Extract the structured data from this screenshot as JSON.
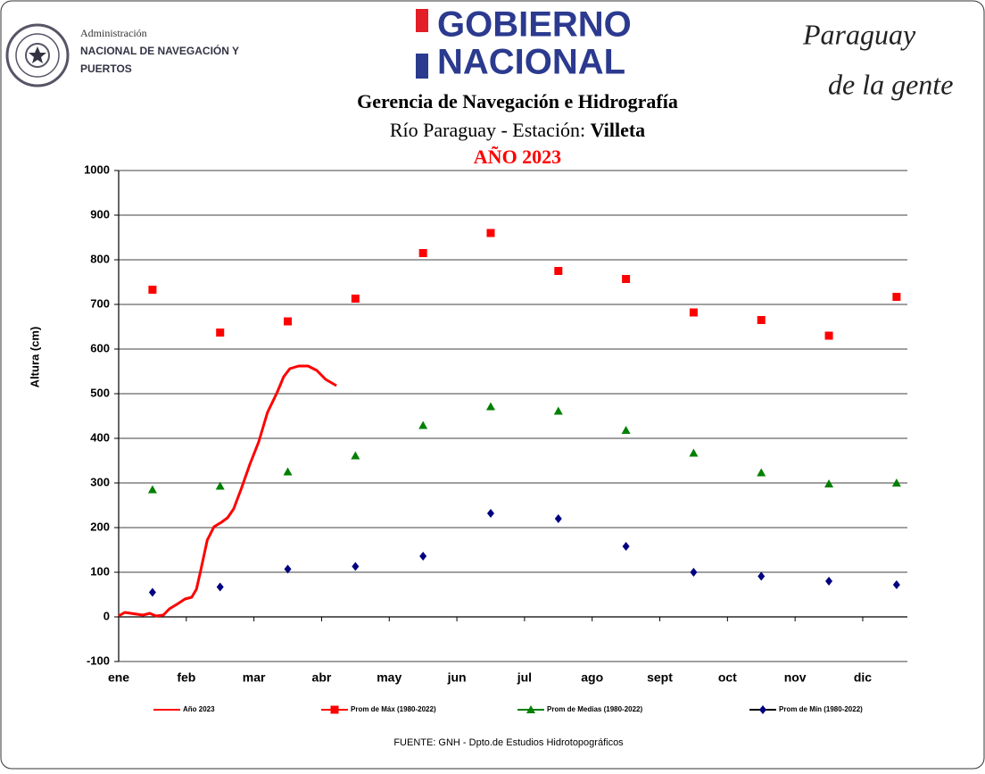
{
  "header": {
    "org_line1": "Administración",
    "org_line2": "NACIONAL DE NAVEGACIÓN Y",
    "org_line3": "PUERTOS",
    "gov_line1": "GOBIERNO",
    "gov_line2": "NACIONAL",
    "slogan_line1": "Paraguay",
    "slogan_line2": "de la gente"
  },
  "chart_data": {
    "type": "line",
    "title": "Gerencia de Navegación e Hidrografía",
    "subtitle": "Río Paraguay - Estación:",
    "station": "Villeta",
    "year_label": "AÑO 2023",
    "y_label": "Altura (cm)",
    "xlim": [
      0,
      11.66
    ],
    "xticks": [
      {
        "value": 0,
        "label": "ene"
      },
      {
        "value": 1,
        "label": "feb"
      },
      {
        "value": 2,
        "label": "mar"
      },
      {
        "value": 3,
        "label": "abr"
      },
      {
        "value": 4,
        "label": "may"
      },
      {
        "value": 5,
        "label": "jun"
      },
      {
        "value": 6,
        "label": "jul"
      },
      {
        "value": 7,
        "label": "ago"
      },
      {
        "value": 8,
        "label": "sept"
      },
      {
        "value": 9,
        "label": "oct"
      },
      {
        "value": 10,
        "label": "nov"
      },
      {
        "value": 11,
        "label": "dic"
      }
    ],
    "ylim": [
      -100,
      1000
    ],
    "yticks": [
      -100,
      0,
      100,
      200,
      300,
      400,
      500,
      600,
      700,
      800,
      900,
      1000
    ],
    "grid": true,
    "series": [
      {
        "name": "Año 2023",
        "color": "#ff0000",
        "marker": "line",
        "x": [
          0,
          0.09,
          0.36,
          0.46,
          0.55,
          0.66,
          0.75,
          0.88,
          0.98,
          1.08,
          1.15,
          1.21,
          1.31,
          1.41,
          1.52,
          1.61,
          1.7,
          1.81,
          1.94,
          2.07,
          2.2,
          2.34,
          2.44,
          2.53,
          2.66,
          2.8,
          2.93,
          3.06,
          3.22
        ],
        "values": [
          2,
          10,
          4,
          8,
          2,
          4,
          18,
          30,
          40,
          44,
          62,
          102,
          172,
          202,
          212,
          222,
          242,
          286,
          342,
          392,
          458,
          502,
          538,
          556,
          562,
          562,
          552,
          532,
          518
        ]
      },
      {
        "name": "Prom de Máx (1980-2022)",
        "color": "#ff0000",
        "marker": "square",
        "x": [
          0.5,
          1.5,
          2.5,
          3.5,
          4.5,
          5.5,
          6.5,
          7.5,
          8.5,
          9.5,
          10.5,
          11.5
        ],
        "values": [
          733,
          637,
          662,
          713,
          815,
          860,
          775,
          757,
          682,
          665,
          630,
          717
        ]
      },
      {
        "name": "Prom de Medias (1980-2022)",
        "color": "#008000",
        "marker": "triangle",
        "x": [
          0.5,
          1.5,
          2.5,
          3.5,
          4.5,
          5.5,
          6.5,
          7.5,
          8.5,
          9.5,
          10.5,
          11.5
        ],
        "values": [
          285,
          293,
          325,
          361,
          429,
          471,
          461,
          418,
          367,
          323,
          298,
          300
        ]
      },
      {
        "name": "Prom de Mín (1980-2022)",
        "color": "#000080",
        "marker": "diamond",
        "x": [
          0.5,
          1.5,
          2.5,
          3.5,
          4.5,
          5.5,
          6.5,
          7.5,
          8.5,
          9.5,
          10.5,
          11.5
        ],
        "values": [
          55,
          67,
          107,
          113,
          136,
          232,
          220,
          158,
          100,
          91,
          80,
          72
        ]
      }
    ]
  },
  "footer": "FUENTE: GNH - Dpto.de Estudios Hidrotopográficos"
}
